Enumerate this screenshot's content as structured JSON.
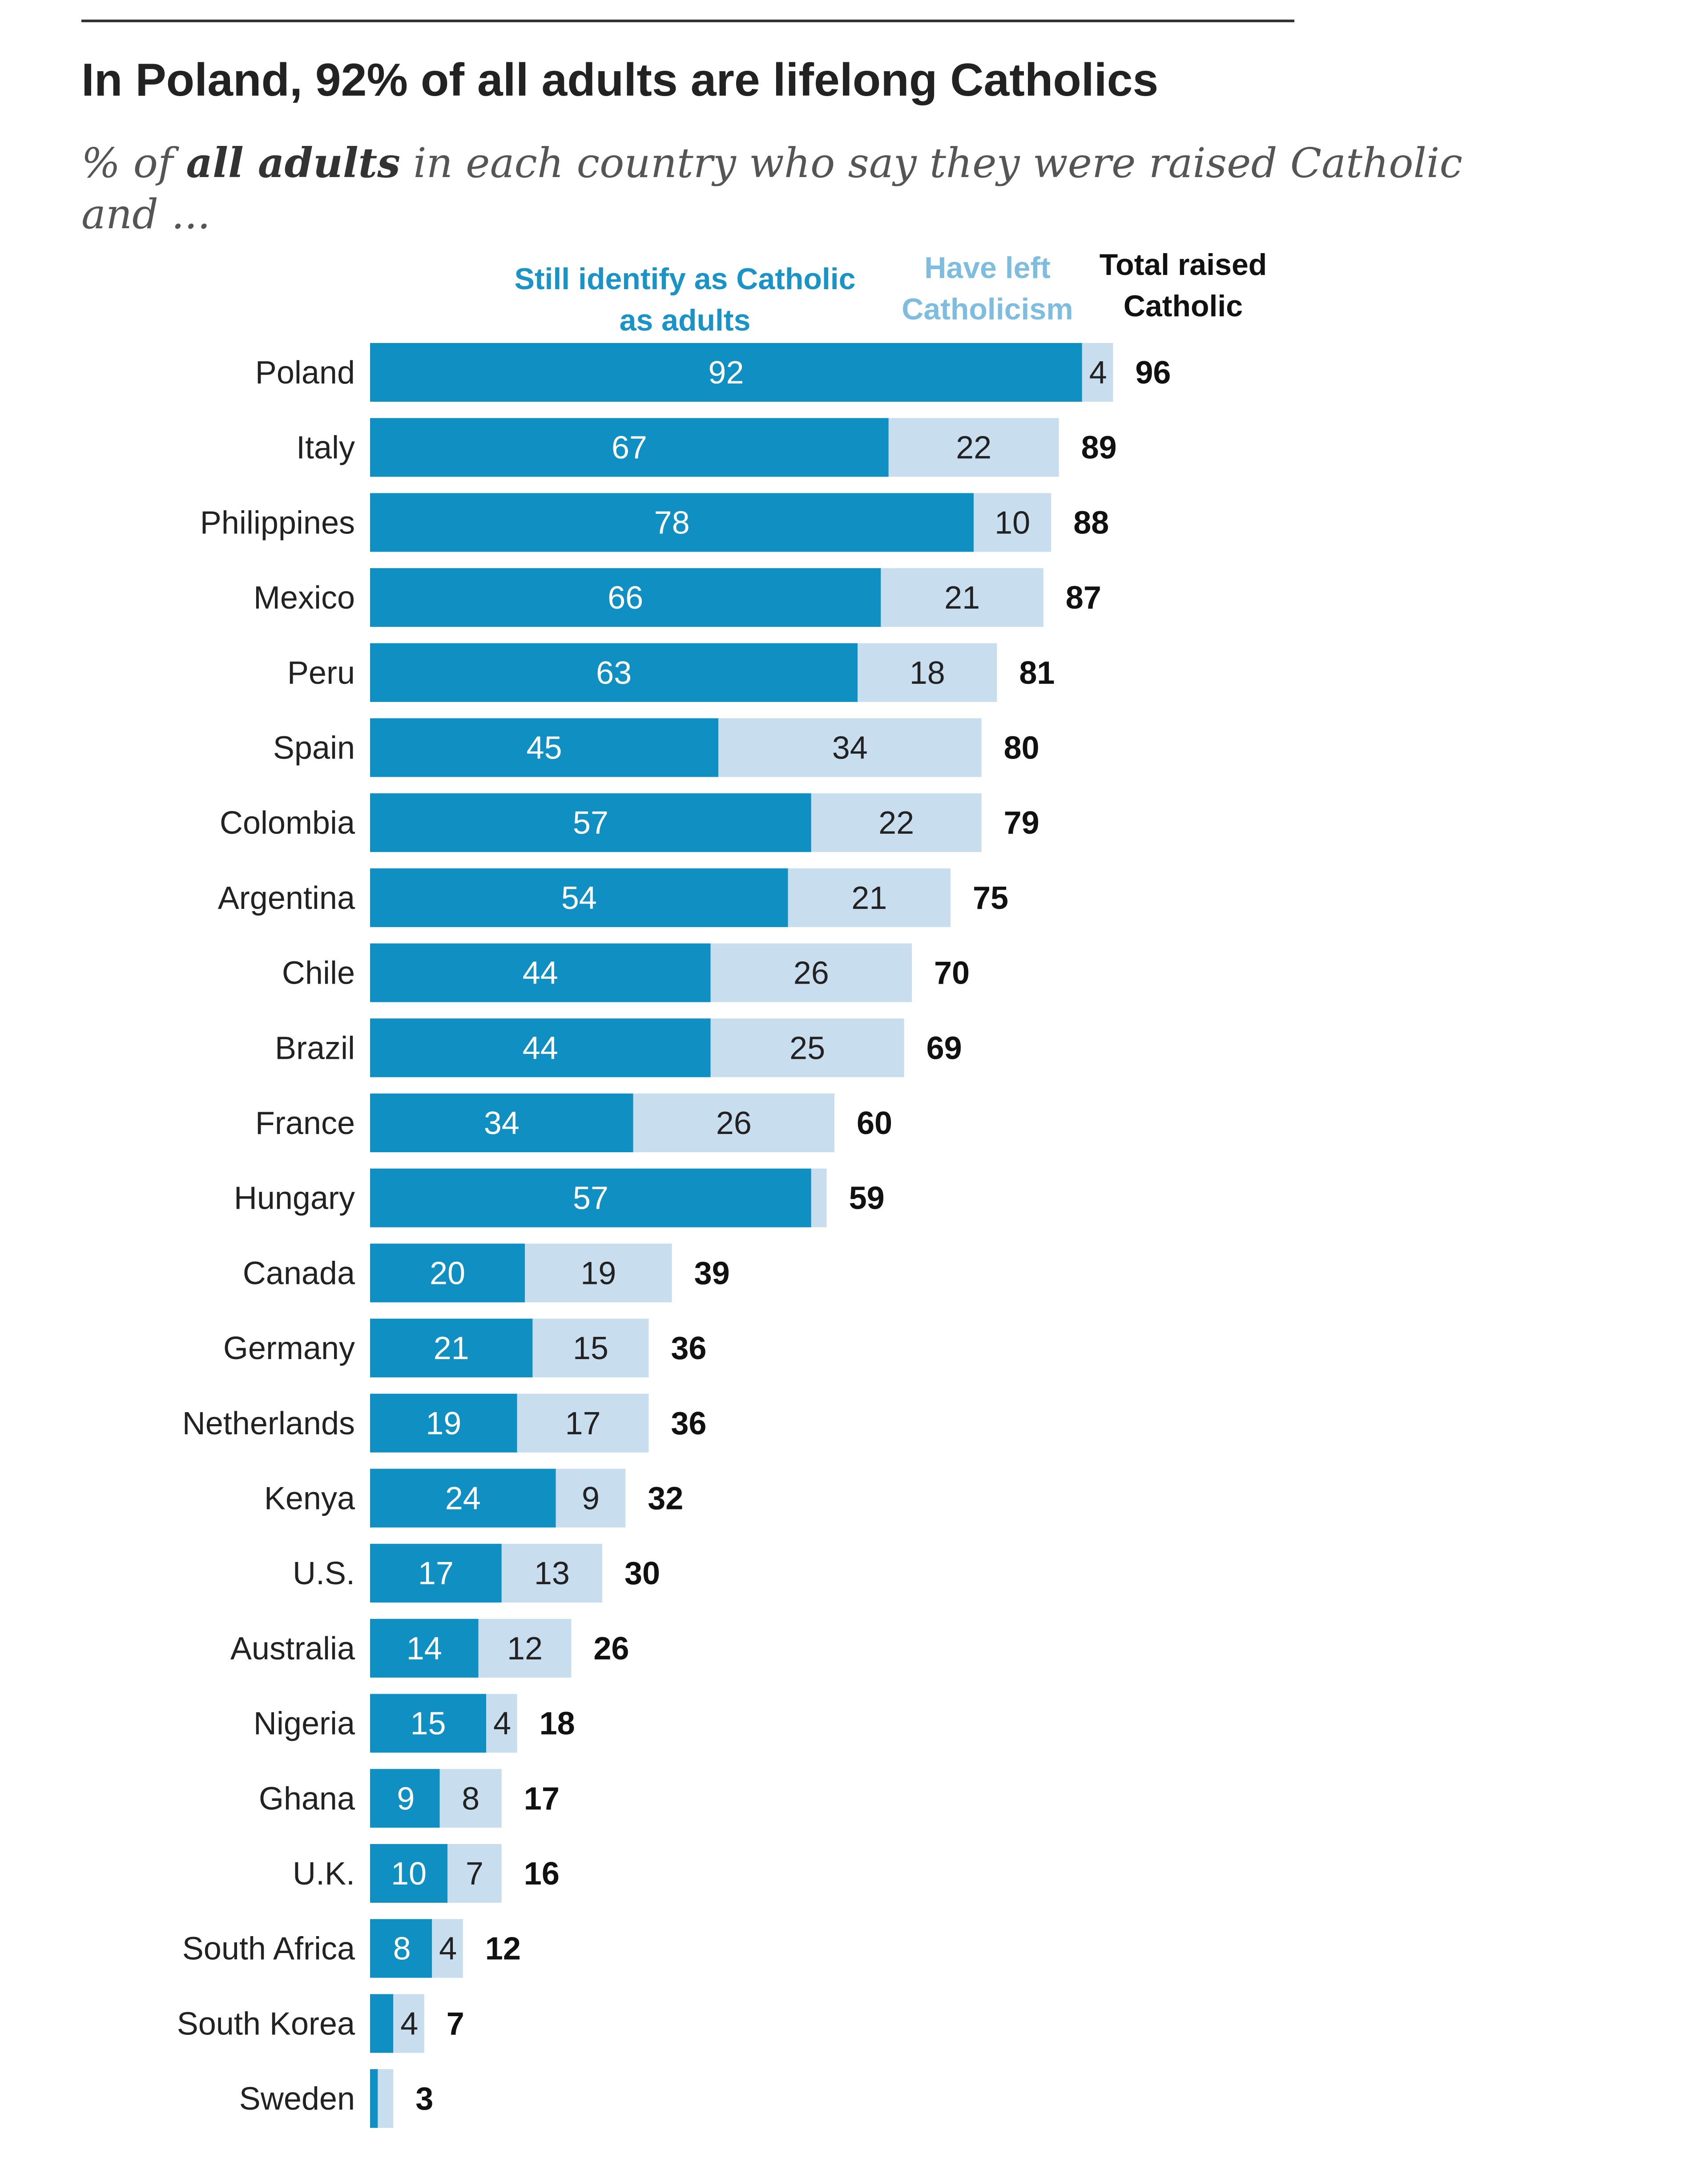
{
  "title": "In Poland, 92% of all adults are lifelong Catholics",
  "subtitle": {
    "prefix": "% of ",
    "emphasis": "all adults",
    "line1_rest": " in each country who say they were raised Catholic",
    "line2": "and ..."
  },
  "colors": {
    "still": "#0f8fc2",
    "left": "#c8ddee",
    "still_header": "#1a93c6",
    "left_header": "#7fbde0",
    "total_header": "#111111"
  },
  "chart_data": {
    "type": "bar",
    "orientation": "horizontal",
    "stacked": true,
    "xlim": [
      0,
      100
    ],
    "grid": false,
    "column_headers": {
      "still": [
        "Still identify as Catholic",
        "as adults"
      ],
      "left": [
        "Have left",
        "Catholicism"
      ],
      "total": [
        "Total raised",
        "Catholic"
      ]
    },
    "categories": [
      "Poland",
      "Italy",
      "Philippines",
      "Mexico",
      "Peru",
      "Spain",
      "Colombia",
      "Argentina",
      "Chile",
      "Brazil",
      "France",
      "Hungary",
      "Canada",
      "Germany",
      "Netherlands",
      "Kenya",
      "U.S.",
      "Australia",
      "Nigeria",
      "Ghana",
      "U.K.",
      "South Africa",
      "South Korea",
      "Sweden"
    ],
    "series": [
      {
        "key": "still",
        "values": [
          92,
          67,
          78,
          66,
          63,
          45,
          57,
          54,
          44,
          44,
          34,
          57,
          20,
          21,
          19,
          24,
          17,
          14,
          15,
          9,
          10,
          8,
          3,
          1
        ]
      },
      {
        "key": "left",
        "values": [
          4,
          22,
          10,
          21,
          18,
          34,
          22,
          21,
          26,
          25,
          26,
          2,
          19,
          15,
          17,
          9,
          13,
          12,
          4,
          8,
          7,
          4,
          4,
          2
        ]
      }
    ],
    "still_labels": [
      "92",
      "67",
      "78",
      "66",
      "63",
      "45",
      "57",
      "54",
      "44",
      "44",
      "34",
      "57",
      "20",
      "21",
      "19",
      "24",
      "17",
      "14",
      "15",
      "9",
      "10",
      "8",
      "",
      ""
    ],
    "left_labels": [
      "4",
      "22",
      "10",
      "21",
      "18",
      "34",
      "22",
      "21",
      "26",
      "25",
      "26",
      "",
      "19",
      "15",
      "17",
      "9",
      "13",
      "12",
      "4",
      "8",
      "7",
      "4",
      "4",
      ""
    ],
    "totals": [
      "96",
      "89",
      "88",
      "87",
      "81",
      "80",
      "79",
      "75",
      "70",
      "69",
      "60",
      "59",
      "39",
      "36",
      "36",
      "32",
      "30",
      "26",
      "18",
      "17",
      "16",
      "12",
      "7",
      "3"
    ]
  }
}
